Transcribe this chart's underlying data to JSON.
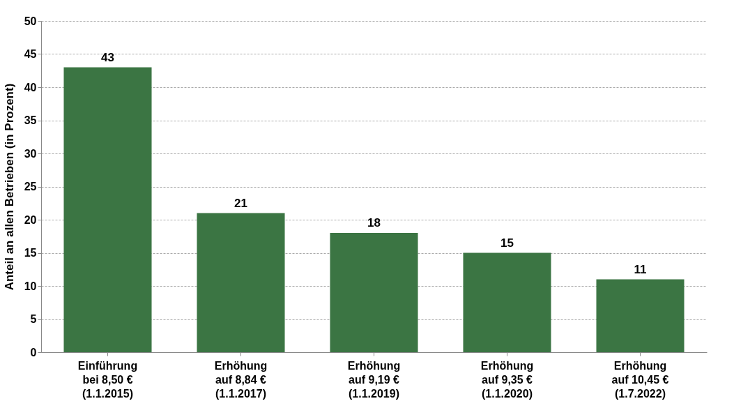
{
  "chart_data": {
    "type": "bar",
    "ylabel": "Anteil an allen Betrieben (in Prozent)",
    "categories": [
      "Einführung\nbei 8,50 €\n(1.1.2015)",
      "Erhöhung\nauf 8,84 €\n(1.1.2017)",
      "Erhöhung\nauf 9,19 €\n(1.1.2019)",
      "Erhöhung\nauf 9,35 €\n(1.1.2020)",
      "Erhöhung\nauf 10,45 €\n(1.7.2022)"
    ],
    "values": [
      43,
      21,
      18,
      15,
      11
    ],
    "color": "#3b7543",
    "ylim": [
      0,
      50
    ],
    "yticks": [
      0,
      5,
      10,
      15,
      20,
      25,
      30,
      35,
      40,
      45,
      50
    ],
    "grid": "y",
    "data_labels": true
  }
}
